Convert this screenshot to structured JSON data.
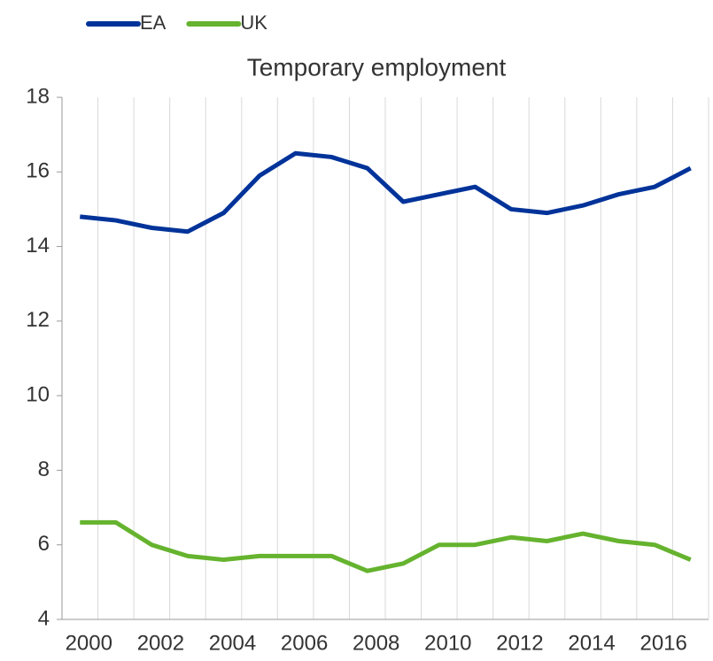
{
  "chart_data": {
    "type": "line",
    "title": "Temporary employment",
    "categories": [
      "2000",
      null,
      "2002",
      null,
      "2004",
      null,
      "2006",
      null,
      "2008",
      null,
      "2010",
      null,
      "2012",
      null,
      "2014",
      null,
      "2016",
      null
    ],
    "series": [
      {
        "name": "EA",
        "color": "#003399",
        "values": [
          14.8,
          14.7,
          14.5,
          14.4,
          14.9,
          15.9,
          16.5,
          16.4,
          16.1,
          15.2,
          15.4,
          15.6,
          15.0,
          14.9,
          15.1,
          15.4,
          15.6,
          16.1
        ]
      },
      {
        "name": "UK",
        "color": "#65b32e",
        "values": [
          6.6,
          6.6,
          6.0,
          5.7,
          5.6,
          5.7,
          5.7,
          5.7,
          5.3,
          5.5,
          6.0,
          6.0,
          6.2,
          6.1,
          6.3,
          6.1,
          6.0,
          5.6
        ]
      }
    ],
    "ylim": [
      4,
      18
    ],
    "yticks": [
      4,
      6,
      8,
      10,
      12,
      14,
      16,
      18
    ],
    "grid": true,
    "legend": "top"
  }
}
